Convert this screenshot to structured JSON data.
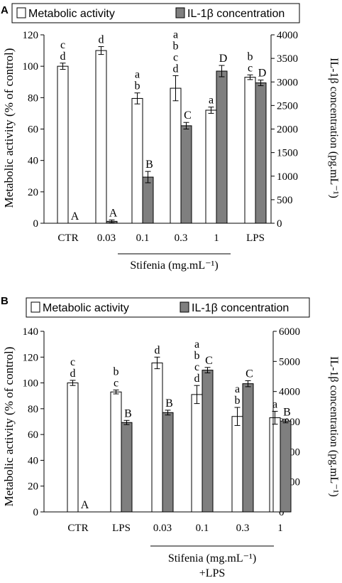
{
  "chart_data": [
    {
      "panel_label": "A",
      "type": "bar",
      "categories": [
        "CTR",
        "0.03",
        "0.1",
        "0.3",
        "1",
        "LPS"
      ],
      "group_label": "Stifenia (mg.mL⁻¹)",
      "group_label_line2": "",
      "group_categories": [
        "0.03",
        "0.1",
        "0.3",
        "1"
      ],
      "y_left": {
        "label": "Metabolic activity (% of control)",
        "range": [
          0,
          120
        ],
        "ticks": [
          0,
          20,
          40,
          60,
          80,
          100,
          120
        ]
      },
      "y_right": {
        "label": "IL-1β concentration (pg.mL⁻¹)",
        "range": [
          0,
          4000
        ],
        "ticks": [
          0,
          500,
          1000,
          1500,
          2000,
          2500,
          3000,
          3500,
          4000
        ]
      },
      "legend": [
        "Metabolic activity",
        "IL-1β concentration"
      ],
      "series": [
        {
          "name": "Metabolic activity",
          "axis": "left",
          "color": "#ffffff",
          "values": [
            100,
            110,
            79.5,
            86,
            72,
            93
          ],
          "errors": [
            2,
            2.5,
            3.5,
            8,
            2,
            1.5
          ],
          "labels": [
            "c\nd",
            "d",
            "a\nb",
            "a\nb\nc\nd",
            "a",
            "b\nc"
          ]
        },
        {
          "name": "IL-1β concentration",
          "axis": "right",
          "color": "#7f7f7f",
          "values": [
            0,
            40,
            980,
            2070,
            3230,
            2980
          ],
          "errors": [
            0,
            30,
            120,
            70,
            120,
            60
          ],
          "labels": [
            "A",
            "A",
            "B",
            "C",
            "D",
            "D"
          ]
        }
      ]
    },
    {
      "panel_label": "B",
      "type": "bar",
      "categories": [
        "CTR",
        "LPS",
        "0.03",
        "0.1",
        "0.3",
        "1"
      ],
      "group_label": "Stifenia (mg.mL⁻¹)",
      "group_label_line2": "+LPS",
      "group_categories": [
        "0.03",
        "0.1",
        "0.3",
        "1"
      ],
      "y_left": {
        "label": "Metabolic activity (% of control)",
        "range": [
          0,
          140
        ],
        "ticks": [
          0,
          20,
          40,
          60,
          80,
          100,
          120,
          140
        ]
      },
      "y_right": {
        "label": "IL-1β concentration (pg.mL⁻¹)",
        "range": [
          0,
          6000
        ],
        "ticks": [
          0,
          1000,
          2000,
          3000,
          4000,
          5000,
          6000
        ]
      },
      "legend": [
        "Metabolic activity",
        "IL-1β concentration"
      ],
      "series": [
        {
          "name": "Metabolic activity",
          "axis": "left",
          "color": "#ffffff",
          "values": [
            100,
            93,
            115.5,
            91,
            74,
            73
          ],
          "errors": [
            2,
            1.5,
            4.5,
            7,
            7,
            5
          ],
          "labels": [
            "c\nd",
            "b\nc",
            "d",
            "a\nb\nc\nd",
            "a\nb",
            "a"
          ]
        },
        {
          "name": "IL-1β concentration",
          "axis": "right",
          "color": "#7f7f7f",
          "values": [
            0,
            2970,
            3300,
            4710,
            4260,
            3020
          ],
          "errors": [
            0,
            70,
            80,
            90,
            100,
            60
          ],
          "labels": [
            "A",
            "B",
            "B",
            "C",
            "C",
            "B"
          ]
        }
      ]
    }
  ]
}
